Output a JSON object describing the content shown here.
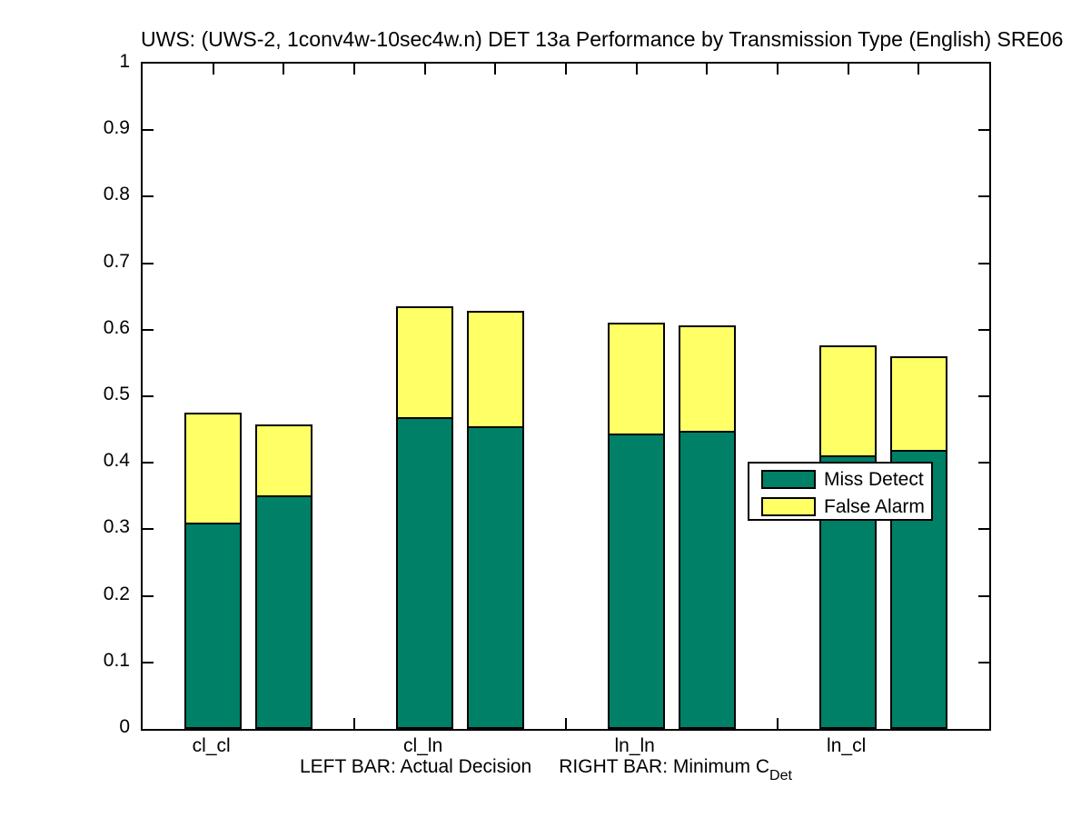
{
  "chart_data": {
    "type": "bar",
    "stacked": true,
    "title": "UWS: (UWS-2, 1conv4w-10sec4w.n) DET 13a Performance by Transmission Type (English) SRE06",
    "xlabel": "LEFT BAR: Actual Decision    RIGHT BAR: Minimum C_Det",
    "xlabel_parts": {
      "left": "LEFT BAR: Actual Decision",
      "right": "RIGHT BAR: Minimum C",
      "subscript": "Det"
    },
    "ylabel": "",
    "ylim": [
      0,
      1
    ],
    "yticks": [
      0,
      0.1,
      0.2,
      0.3,
      0.4,
      0.5,
      0.6,
      0.7,
      0.8,
      0.9,
      1
    ],
    "ytick_labels": [
      "0",
      "0.1",
      "0.2",
      "0.3",
      "0.4",
      "0.5",
      "0.6",
      "0.7",
      "0.8",
      "0.9",
      "1"
    ],
    "categories": [
      "cl_cl",
      "cl_ln",
      "ln_ln",
      "ln_cl"
    ],
    "bar_meaning": {
      "left_bar": "Actual Decision",
      "right_bar": "Minimum C_Det"
    },
    "segments": [
      "Miss Detect",
      "False Alarm"
    ],
    "colors": {
      "miss_detect": "#008066",
      "false_alarm": "#FFFF66",
      "axis": "#000000",
      "background": "#FFFFFF"
    },
    "groups": [
      {
        "category": "cl_cl",
        "bars": [
          {
            "bar": "Actual Decision",
            "miss_detect": 0.31,
            "false_alarm": 0.166
          },
          {
            "bar": "Minimum C_Det",
            "miss_detect": 0.351,
            "false_alarm": 0.107
          }
        ]
      },
      {
        "category": "cl_ln",
        "bars": [
          {
            "bar": "Actual Decision",
            "miss_detect": 0.469,
            "false_alarm": 0.166
          },
          {
            "bar": "Minimum C_Det",
            "miss_detect": 0.455,
            "false_alarm": 0.174
          }
        ]
      },
      {
        "category": "ln_ln",
        "bars": [
          {
            "bar": "Actual Decision",
            "miss_detect": 0.444,
            "false_alarm": 0.167
          },
          {
            "bar": "Minimum C_Det",
            "miss_detect": 0.448,
            "false_alarm": 0.159
          }
        ]
      },
      {
        "category": "ln_cl",
        "bars": [
          {
            "bar": "Actual Decision",
            "miss_detect": 0.411,
            "false_alarm": 0.165
          },
          {
            "bar": "Minimum C_Det",
            "miss_detect": 0.419,
            "false_alarm": 0.141
          }
        ]
      }
    ],
    "legend": {
      "entries": [
        "Miss Detect",
        "False Alarm"
      ],
      "position": "middle-right"
    }
  }
}
